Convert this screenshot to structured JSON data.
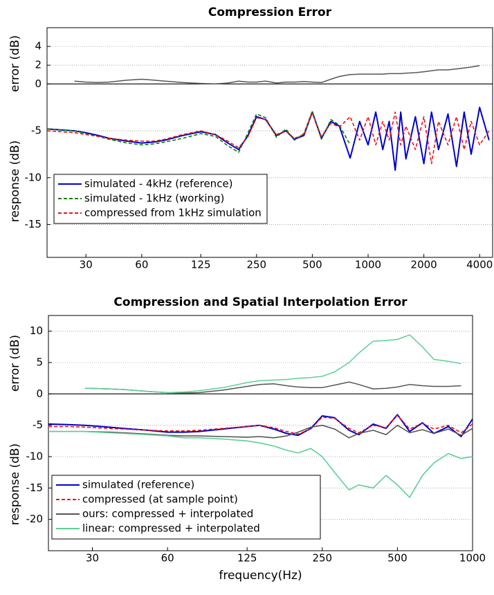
{
  "chart_data": [
    {
      "type": "line",
      "title": "Compression Error",
      "ylabel_top": "error (dB)",
      "ylabel_bottom": "response (dB)",
      "xscale": "log",
      "xlim": [
        18.5,
        4700
      ],
      "xticks": [
        30,
        60,
        125,
        250,
        500,
        1000,
        2000,
        4000
      ],
      "ylim": [
        -18.5,
        6
      ],
      "yticks": [
        4,
        2,
        0,
        -5,
        -10,
        -15
      ],
      "grid": true,
      "legend": "lower left",
      "x": [
        18.5,
        22,
        26,
        30,
        35,
        40,
        50,
        60,
        70,
        80,
        100,
        125,
        150,
        175,
        200,
        225,
        250,
        280,
        320,
        360,
        400,
        450,
        500,
        560,
        630,
        700,
        800,
        900,
        1000,
        1100,
        1200,
        1300,
        1400,
        1500,
        1600,
        1800,
        2000,
        2200,
        2400,
        2700,
        3000,
        3300,
        3600,
        4000,
        4500
      ],
      "series": [
        {
          "name": "simulated - 4kHz (reference)",
          "color": "#0000cc",
          "linestyle": "solid",
          "values": [
            -4.8,
            -4.9,
            -5.0,
            -5.2,
            -5.5,
            -5.8,
            -6.1,
            -6.3,
            -6.2,
            -6.0,
            -5.5,
            -5.1,
            -5.4,
            -6.3,
            -7.0,
            -5.5,
            -3.5,
            -3.8,
            -5.5,
            -5.0,
            -5.9,
            -5.5,
            -3.0,
            -5.8,
            -4.0,
            -4.5,
            -7.9,
            -4.0,
            -6.5,
            -3.0,
            -7.0,
            -4.0,
            -9.2,
            -3.0,
            -8.0,
            -3.5,
            -8.5,
            -3.0,
            -7.0,
            -3.2,
            -8.8,
            -3.0,
            -7.5,
            -2.5,
            -6.0
          ]
        },
        {
          "name": "simulated - 1kHz (working)",
          "color": "#008000",
          "linestyle": "dashed",
          "values": [
            -4.8,
            -4.9,
            -5.0,
            -5.3,
            -5.6,
            -5.9,
            -6.3,
            -6.5,
            -6.4,
            -6.2,
            -5.8,
            -5.3,
            -5.6,
            -6.6,
            -7.3,
            -5.2,
            -3.2,
            -3.6,
            -5.7,
            -4.8,
            -6.0,
            -5.3,
            -2.9,
            -5.9,
            -3.8,
            -4.4,
            -6.5,
            null,
            null,
            null,
            null,
            null,
            null,
            null,
            null,
            null,
            null,
            null,
            null,
            null,
            null,
            null,
            null,
            null,
            null
          ]
        },
        {
          "name": "compressed from 1kHz simulation",
          "color": "#ee1111",
          "linestyle": "dashed",
          "values": [
            -5.0,
            -5.1,
            -5.2,
            -5.4,
            -5.6,
            -5.8,
            -6.0,
            -6.1,
            -6.1,
            -5.9,
            -5.4,
            -5.0,
            -5.4,
            -6.1,
            -6.8,
            -5.6,
            -3.6,
            -3.8,
            -5.4,
            -5.0,
            -5.8,
            -5.4,
            -3.1,
            -5.6,
            -4.2,
            -4.6,
            -3.5,
            -6.0,
            -3.5,
            -6.5,
            -4.0,
            -6.0,
            -3.0,
            -6.5,
            -4.5,
            -7.0,
            -3.5,
            -8.5,
            -4.0,
            -6.5,
            -3.5,
            -7.0,
            -4.0,
            -6.5,
            -5.0
          ]
        }
      ],
      "error_series": [
        {
          "color": "#555555",
          "values": [
            null,
            null,
            0.3,
            0.2,
            0.15,
            0.2,
            0.4,
            0.5,
            0.4,
            0.3,
            0.15,
            0.05,
            0.0,
            0.1,
            0.3,
            0.2,
            0.2,
            0.3,
            0.1,
            0.2,
            0.2,
            0.25,
            0.2,
            0.15,
            0.5,
            0.8,
            1.0,
            1.05,
            1.05,
            1.05,
            1.05,
            1.1,
            1.1,
            1.1,
            1.15,
            1.2,
            1.3,
            1.4,
            1.5,
            1.5,
            1.6,
            1.7,
            1.8,
            1.95,
            null
          ]
        }
      ]
    },
    {
      "type": "line",
      "title": "Compression and Spatial Interpolation Error",
      "ylabel_top": "error (dB)",
      "ylabel_bottom": "response (dB)",
      "xlabel": "frequency(Hz)",
      "xscale": "log",
      "xlim": [
        20,
        1000
      ],
      "xticks": [
        30,
        60,
        125,
        250,
        500,
        1000
      ],
      "ylim": [
        -25,
        12.5
      ],
      "yticks": [
        10,
        5,
        0,
        -5,
        -10,
        -15,
        -20
      ],
      "grid": true,
      "legend": "lower left",
      "x": [
        20,
        24,
        28,
        35,
        40,
        50,
        60,
        70,
        80,
        100,
        125,
        140,
        160,
        180,
        200,
        225,
        250,
        280,
        320,
        350,
        400,
        450,
        500,
        560,
        630,
        700,
        800,
        900,
        1000
      ],
      "series": [
        {
          "name": "simulated (reference)",
          "color": "#0000cc",
          "linestyle": "solid",
          "values": [
            -4.8,
            -4.9,
            -5.0,
            -5.3,
            -5.5,
            -5.8,
            -6.1,
            -6.1,
            -6.0,
            -5.6,
            -5.2,
            -5.0,
            -5.6,
            -6.3,
            -6.6,
            -5.5,
            -3.5,
            -3.8,
            -5.8,
            -6.5,
            -4.8,
            -5.5,
            -3.3,
            -6.0,
            -4.6,
            -6.3,
            -5.2,
            -6.8,
            -4.0
          ]
        },
        {
          "name": "compressed (at sample point)",
          "color": "#ee1111",
          "linestyle": "dashed",
          "values": [
            -5.2,
            -5.2,
            -5.3,
            -5.5,
            -5.6,
            -5.8,
            -5.9,
            -5.9,
            -5.8,
            -5.5,
            -5.2,
            -5.0,
            -5.4,
            -6.0,
            -6.4,
            -5.6,
            -3.7,
            -3.9,
            -5.5,
            -6.2,
            -5.0,
            -5.4,
            -3.4,
            -5.6,
            -4.7,
            -5.6,
            -5.0,
            -6.2,
            -4.8
          ]
        },
        {
          "name": "ours: compressed + interpolated",
          "color": "#555555",
          "linestyle": "solid",
          "values": [
            -6.0,
            -6.0,
            -6.0,
            -6.1,
            -6.2,
            -6.4,
            -6.6,
            -6.7,
            -6.7,
            -6.8,
            -6.9,
            -6.8,
            -7.0,
            -6.7,
            -6.1,
            -5.3,
            -5.0,
            -5.6,
            -7.0,
            -6.3,
            -5.8,
            -6.5,
            -5.0,
            -6.2,
            -5.7,
            -6.3,
            -5.6,
            -6.6,
            -5.5
          ]
        },
        {
          "name": "linear: compressed + interpolated",
          "color": "#5ccf95",
          "linestyle": "solid",
          "values": [
            -6.0,
            -6.0,
            -6.0,
            -6.2,
            -6.3,
            -6.5,
            -6.7,
            -7.0,
            -7.0,
            -7.2,
            -7.5,
            -7.8,
            -8.3,
            -9.0,
            -9.4,
            -8.7,
            -10.0,
            -12.5,
            -15.3,
            -14.5,
            -15.0,
            -13.0,
            -14.5,
            -16.5,
            -13.0,
            -11.0,
            -9.5,
            -10.3,
            -10.0
          ]
        }
      ],
      "error_series": [
        {
          "color": "#555555",
          "values": [
            null,
            null,
            0.9,
            0.8,
            0.7,
            0.4,
            0.2,
            0.15,
            0.2,
            0.6,
            1.2,
            1.5,
            1.6,
            1.3,
            1.1,
            1.0,
            1.0,
            1.4,
            1.9,
            1.5,
            0.8,
            0.9,
            1.1,
            1.5,
            1.3,
            1.2,
            1.2,
            1.3,
            null
          ]
        },
        {
          "color": "#5ccf95",
          "values": [
            null,
            null,
            0.9,
            0.8,
            0.7,
            0.4,
            0.2,
            0.3,
            0.5,
            1.0,
            1.8,
            2.1,
            2.2,
            2.3,
            2.5,
            2.6,
            2.8,
            3.5,
            5.0,
            6.5,
            8.4,
            8.5,
            8.7,
            9.4,
            7.5,
            5.5,
            5.2,
            4.8,
            null
          ]
        }
      ]
    }
  ]
}
